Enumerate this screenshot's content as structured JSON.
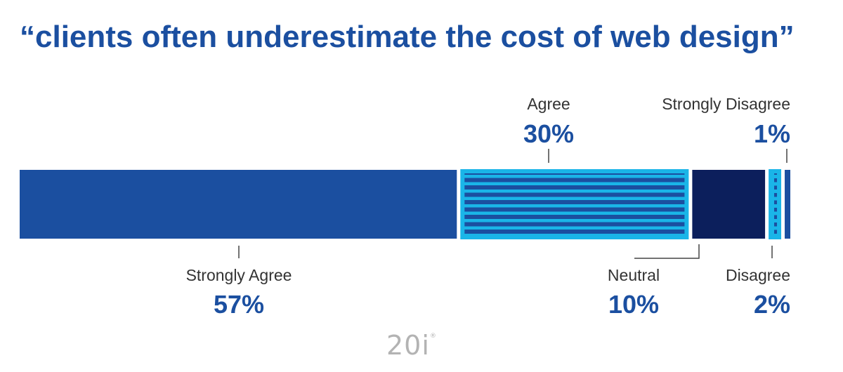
{
  "title": "“clients often underestimate the cost of web design”",
  "logo": "20i",
  "colors": {
    "strongly_agree": "#1b4fa0",
    "agree_fill": "#1ab5e8",
    "agree_stripe": "#1b4fa0",
    "neutral": "#0c1f5c",
    "disagree_fill": "#1ab5e8",
    "disagree_dash": "#1b4fa0",
    "strongly_disagree": "#1b4fa0",
    "leader": "#444444",
    "label": "#333333",
    "percent": "#1b4fa0"
  },
  "chart_data": {
    "type": "bar",
    "orientation": "horizontal-stacked",
    "title": "“clients often underestimate the cost of web design”",
    "categories": [
      "Strongly Agree",
      "Agree",
      "Neutral",
      "Disagree",
      "Strongly Disagree"
    ],
    "values": [
      57,
      30,
      10,
      2,
      1
    ],
    "value_labels": [
      "57%",
      "30%",
      "10%",
      "2%",
      "1%"
    ],
    "unit": "%",
    "label_positions": [
      "below",
      "above",
      "below",
      "below",
      "above"
    ]
  }
}
